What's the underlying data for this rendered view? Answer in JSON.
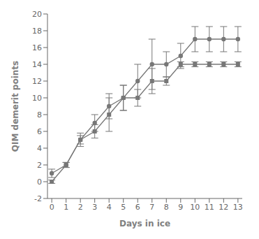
{
  "chart_data": {
    "type": "line",
    "xlabel": "Days in ice",
    "ylabel": "QIM demerit points",
    "x": [
      0,
      1,
      2,
      3,
      4,
      5,
      6,
      7,
      8,
      9,
      10,
      11,
      12,
      13
    ],
    "series": [
      {
        "color": "#777777",
        "marker": "circle",
        "values": [
          1,
          2,
          5,
          7,
          9,
          10,
          12,
          14,
          14,
          15,
          17,
          17,
          17,
          17
        ],
        "yerr": [
          0.5,
          0.3,
          0.8,
          1.0,
          1.5,
          1.5,
          2.0,
          3.0,
          1.5,
          1.5,
          1.5,
          1.5,
          1.5,
          1.5
        ]
      },
      {
        "color": "#777777",
        "marker": "square",
        "values": [
          0,
          2,
          5,
          6,
          8,
          10,
          10,
          12,
          12,
          14,
          14,
          14,
          14,
          14
        ],
        "yerr": [
          0.2,
          0.3,
          0.5,
          0.8,
          2.0,
          1.5,
          1.0,
          1.5,
          0.5,
          0.3,
          0.3,
          0.3,
          0.3,
          0.3
        ]
      }
    ],
    "xlim": [
      -0.3,
      13.3
    ],
    "xticks": [
      0,
      1,
      2,
      3,
      4,
      5,
      6,
      7,
      8,
      9,
      10,
      11,
      12,
      13
    ],
    "ylim": [
      -2,
      20
    ],
    "yticks": [
      -2,
      0,
      2,
      4,
      6,
      8,
      10,
      12,
      14,
      16,
      18,
      20
    ]
  }
}
